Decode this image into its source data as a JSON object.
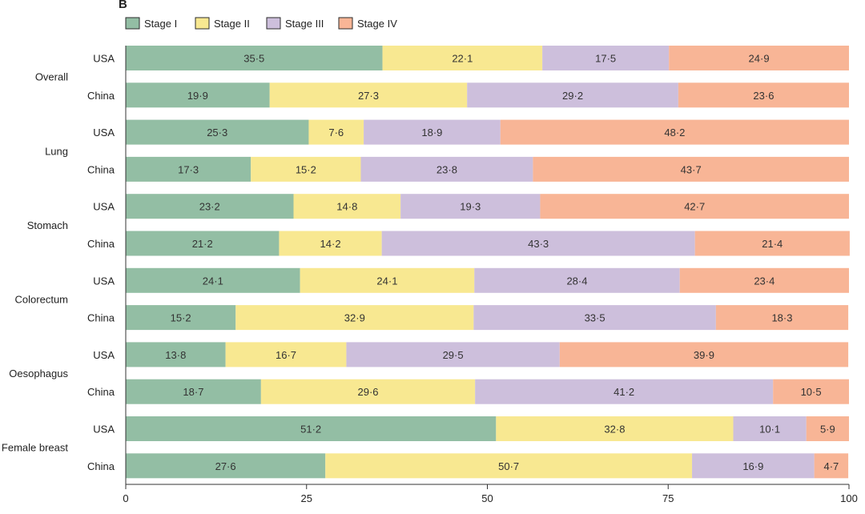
{
  "panel_label": "B",
  "chart_data": {
    "type": "bar",
    "orientation": "horizontal",
    "stacked": true,
    "xlim": [
      0,
      100
    ],
    "xticks": [
      "0",
      "25",
      "50",
      "75",
      "100"
    ],
    "legend_position": "top-left",
    "series": [
      {
        "name": "Stage I",
        "color": "#93bea4"
      },
      {
        "name": "Stage II",
        "color": "#f8e891"
      },
      {
        "name": "Stage III",
        "color": "#cdbfdc"
      },
      {
        "name": "Stage IV",
        "color": "#f8b596"
      }
    ],
    "groups": [
      {
        "name": "Overall",
        "rows": [
          {
            "label": "USA",
            "values": [
              35.5,
              22.1,
              17.5,
              24.9
            ],
            "labels": [
              "35·5",
              "22·1",
              "17·5",
              "24·9"
            ]
          },
          {
            "label": "China",
            "values": [
              19.9,
              27.3,
              29.2,
              23.6
            ],
            "labels": [
              "19·9",
              "27·3",
              "29·2",
              "23·6"
            ]
          }
        ]
      },
      {
        "name": "Lung",
        "rows": [
          {
            "label": "USA",
            "values": [
              25.3,
              7.6,
              18.9,
              48.2
            ],
            "labels": [
              "25·3",
              "7·6",
              "18·9",
              "48·2"
            ]
          },
          {
            "label": "China",
            "values": [
              17.3,
              15.2,
              23.8,
              43.7
            ],
            "labels": [
              "17·3",
              "15·2",
              "23·8",
              "43·7"
            ]
          }
        ]
      },
      {
        "name": "Stomach",
        "rows": [
          {
            "label": "USA",
            "values": [
              23.2,
              14.8,
              19.3,
              42.7
            ],
            "labels": [
              "23·2",
              "14·8",
              "19·3",
              "42·7"
            ]
          },
          {
            "label": "China",
            "values": [
              21.2,
              14.2,
              43.3,
              21.4
            ],
            "labels": [
              "21·2",
              "14·2",
              "43·3",
              "21·4"
            ]
          }
        ]
      },
      {
        "name": "Colorectum",
        "rows": [
          {
            "label": "USA",
            "values": [
              24.1,
              24.1,
              28.4,
              23.4
            ],
            "labels": [
              "24·1",
              "24·1",
              "28·4",
              "23·4"
            ]
          },
          {
            "label": "China",
            "values": [
              15.2,
              32.9,
              33.5,
              18.3
            ],
            "labels": [
              "15·2",
              "32·9",
              "33·5",
              "18·3"
            ]
          }
        ]
      },
      {
        "name": "Oesophagus",
        "rows": [
          {
            "label": "USA",
            "values": [
              13.8,
              16.7,
              29.5,
              39.9
            ],
            "labels": [
              "13·8",
              "16·7",
              "29·5",
              "39·9"
            ]
          },
          {
            "label": "China",
            "values": [
              18.7,
              29.6,
              41.2,
              10.5
            ],
            "labels": [
              "18·7",
              "29·6",
              "41·2",
              "10·5"
            ]
          }
        ]
      },
      {
        "name": "Female breast",
        "rows": [
          {
            "label": "USA",
            "values": [
              51.2,
              32.8,
              10.1,
              5.9
            ],
            "labels": [
              "51·2",
              "32·8",
              "10·1",
              "5·9"
            ]
          },
          {
            "label": "China",
            "values": [
              27.6,
              50.7,
              16.9,
              4.7
            ],
            "labels": [
              "27·6",
              "50·7",
              "16·9",
              "4·7"
            ]
          }
        ]
      }
    ]
  }
}
